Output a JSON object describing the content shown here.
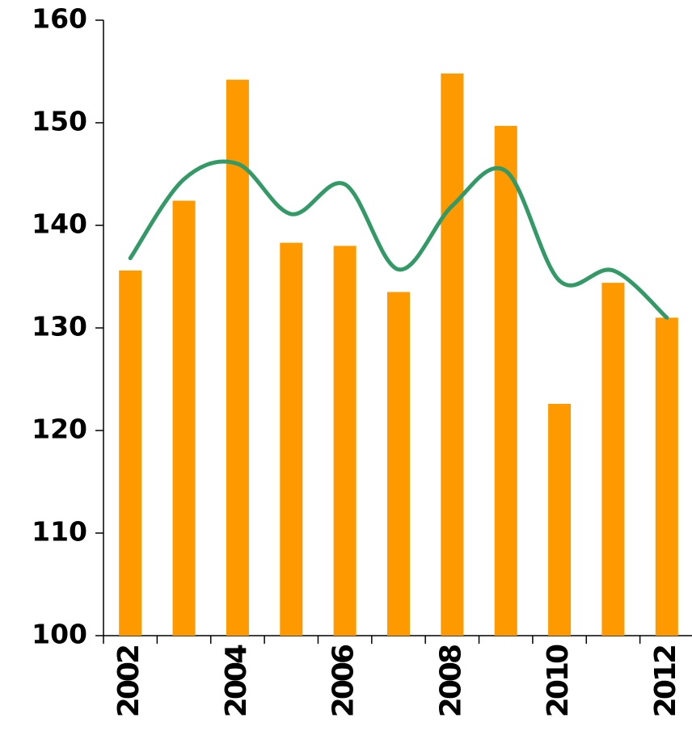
{
  "chart_data": {
    "type": "bar",
    "categories": [
      "2002",
      null,
      "2004",
      null,
      "2006",
      null,
      "2008",
      null,
      "2010",
      null,
      "2012"
    ],
    "series": [
      {
        "type": "bar",
        "color": "#ff9900",
        "values": [
          135.6,
          142.4,
          154.2,
          138.3,
          138.0,
          133.5,
          154.8,
          149.7,
          122.6,
          134.4,
          131.0
        ]
      },
      {
        "type": "line",
        "color": "#339966",
        "values": [
          136.8,
          144.5,
          146.0,
          141.1,
          144.0,
          135.7,
          141.9,
          145.3,
          134.6,
          135.6,
          131.0
        ]
      }
    ],
    "ylim": [
      100,
      160
    ],
    "yticks": [
      100,
      110,
      120,
      130,
      140,
      150,
      160
    ],
    "grid": false
  }
}
